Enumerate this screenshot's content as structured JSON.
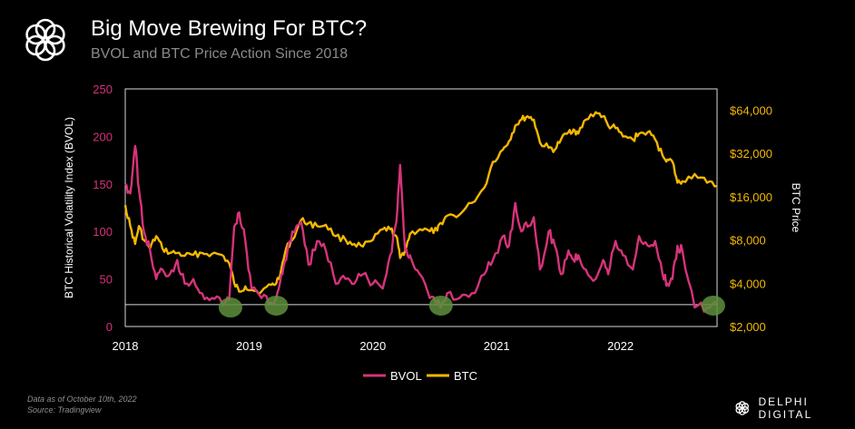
{
  "header": {
    "title": "Big Move Brewing For BTC?",
    "subtitle": "BVOL and BTC Price Action Since 2018",
    "logo_icon": "delphi-knot-icon"
  },
  "footer": {
    "note_line1": "Data as of October 10th, 2022",
    "note_line2": "Source: Tradingview",
    "brand": "DELPHI DIGITAL"
  },
  "colors": {
    "bvol": "#d6337a",
    "btc": "#f5b800",
    "axis_left": "#d6337a",
    "axis_right": "#f5b800",
    "marker": "#5e8f3c"
  },
  "chart_data": {
    "type": "line",
    "xlabel": "",
    "ylabel_left": "BTC Historical Volatility Index (BVOL)",
    "ylabel_right": "BTC Price",
    "xlim": [
      2018.0,
      2022.78
    ],
    "ylim_left": [
      0,
      250
    ],
    "ylim_right": [
      2000,
      90000
    ],
    "right_scale": "log",
    "x_ticks": [
      "2018",
      "2019",
      "2020",
      "2021",
      "2022"
    ],
    "y_ticks_left": [
      "0",
      "50",
      "100",
      "150",
      "200",
      "250"
    ],
    "y_ticks_right": [
      "$2,000",
      "$4,000",
      "$8,000",
      "$16,000",
      "$32,000",
      "$64,000"
    ],
    "y_tick_values_left": [
      0,
      50,
      100,
      150,
      200,
      250
    ],
    "y_tick_values_right": [
      2000,
      4000,
      8000,
      16000,
      32000,
      64000
    ],
    "reference_line_left": 23,
    "grid": false,
    "legend_position": "bottom-center",
    "series": [
      {
        "name": "BVOL",
        "axis": "left",
        "x": [
          2018.0,
          2018.04,
          2018.08,
          2018.11,
          2018.15,
          2018.2,
          2018.25,
          2018.3,
          2018.36,
          2018.42,
          2018.48,
          2018.55,
          2018.62,
          2018.7,
          2018.78,
          2018.84,
          2018.88,
          2018.92,
          2018.97,
          2019.02,
          2019.1,
          2019.18,
          2019.22,
          2019.26,
          2019.3,
          2019.35,
          2019.42,
          2019.48,
          2019.55,
          2019.62,
          2019.7,
          2019.78,
          2019.85,
          2019.92,
          2020.0,
          2020.08,
          2020.14,
          2020.19,
          2020.22,
          2020.26,
          2020.3,
          2020.38,
          2020.46,
          2020.52,
          2020.55,
          2020.6,
          2020.7,
          2020.8,
          2020.9,
          2020.97,
          2021.05,
          2021.1,
          2021.15,
          2021.2,
          2021.25,
          2021.3,
          2021.35,
          2021.42,
          2021.47,
          2021.52,
          2021.58,
          2021.62,
          2021.66,
          2021.72,
          2021.8,
          2021.86,
          2021.9,
          2021.96,
          2022.02,
          2022.1,
          2022.15,
          2022.22,
          2022.28,
          2022.34,
          2022.38,
          2022.42,
          2022.46,
          2022.5,
          2022.6,
          2022.7,
          2022.78
        ],
        "values": [
          150,
          140,
          190,
          145,
          100,
          80,
          50,
          60,
          55,
          70,
          45,
          50,
          35,
          30,
          25,
          28,
          105,
          120,
          90,
          40,
          30,
          25,
          30,
          55,
          70,
          100,
          110,
          65,
          90,
          80,
          45,
          50,
          45,
          55,
          45,
          40,
          75,
          110,
          170,
          80,
          75,
          55,
          30,
          25,
          20,
          35,
          30,
          35,
          55,
          70,
          95,
          85,
          130,
          100,
          105,
          115,
          60,
          100,
          85,
          55,
          80,
          70,
          75,
          60,
          50,
          70,
          55,
          90,
          75,
          60,
          95,
          85,
          90,
          55,
          45,
          50,
          85,
          80,
          20,
          20,
          25
        ]
      },
      {
        "name": "BTC",
        "axis": "right",
        "x": [
          2018.0,
          2018.04,
          2018.08,
          2018.11,
          2018.15,
          2018.2,
          2018.25,
          2018.3,
          2018.36,
          2018.42,
          2018.48,
          2018.55,
          2018.62,
          2018.7,
          2018.78,
          2018.84,
          2018.88,
          2018.92,
          2018.97,
          2019.02,
          2019.1,
          2019.18,
          2019.22,
          2019.26,
          2019.3,
          2019.35,
          2019.42,
          2019.48,
          2019.55,
          2019.62,
          2019.7,
          2019.78,
          2019.85,
          2019.92,
          2020.0,
          2020.08,
          2020.14,
          2020.19,
          2020.22,
          2020.26,
          2020.3,
          2020.38,
          2020.46,
          2020.52,
          2020.55,
          2020.6,
          2020.7,
          2020.8,
          2020.9,
          2020.97,
          2021.05,
          2021.1,
          2021.15,
          2021.2,
          2021.25,
          2021.3,
          2021.35,
          2021.42,
          2021.47,
          2021.52,
          2021.58,
          2021.62,
          2021.66,
          2021.72,
          2021.8,
          2021.86,
          2021.9,
          2021.96,
          2022.02,
          2022.1,
          2022.15,
          2022.22,
          2022.28,
          2022.34,
          2022.38,
          2022.42,
          2022.46,
          2022.5,
          2022.6,
          2022.7,
          2022.78
        ],
        "values": [
          14000,
          10000,
          7500,
          10000,
          8000,
          7000,
          8500,
          7000,
          6500,
          6500,
          6200,
          6300,
          6500,
          6400,
          6300,
          5500,
          4000,
          3500,
          3800,
          3600,
          3500,
          3900,
          4000,
          5000,
          7000,
          8000,
          11000,
          10500,
          10000,
          10200,
          8500,
          8000,
          7500,
          7200,
          8000,
          9500,
          9500,
          8500,
          6000,
          6800,
          8800,
          9500,
          9200,
          9300,
          10500,
          11800,
          12000,
          14500,
          18500,
          28000,
          34000,
          39000,
          50000,
          55000,
          58000,
          55000,
          38000,
          35000,
          34000,
          40000,
          45000,
          47000,
          44000,
          55000,
          62000,
          58000,
          50000,
          48000,
          42000,
          40000,
          44000,
          45000,
          40000,
          31000,
          29000,
          28000,
          20000,
          20500,
          23000,
          20000,
          19000
        ]
      }
    ],
    "highlights": [
      {
        "x": 2018.85,
        "y_left": 20
      },
      {
        "x": 2019.22,
        "y_left": 22
      },
      {
        "x": 2020.55,
        "y_left": 22
      },
      {
        "x": 2022.75,
        "y_left": 22
      }
    ]
  }
}
